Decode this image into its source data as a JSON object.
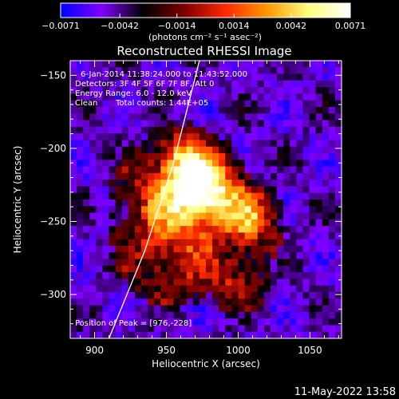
{
  "colors": {
    "background": "#000000",
    "colormap": [
      "#0000ff",
      "#7f00ff",
      "#000000",
      "#7f0000",
      "#ff2a00",
      "#ff9900",
      "#ffff80",
      "#ffffff"
    ],
    "limb": "#ffffff"
  },
  "chart_data": {
    "type": "heatmap",
    "title": "Reconstructed RHESSI Image",
    "xlabel": "Heliocentric X (arcsec)",
    "ylabel": "Heliocentric Y (arcsec)",
    "xlim": [
      883,
      1072
    ],
    "ylim": [
      -330,
      -140
    ],
    "x_ticks": [
      900,
      950,
      1000,
      1050
    ],
    "y_ticks": [
      -150,
      -200,
      -250,
      -300
    ],
    "colorbar": {
      "range": [
        -0.0071,
        0.0071
      ],
      "ticks": [
        "-0.0071",
        "-0.0042",
        "-0.0014",
        "0.0014",
        "0.0042",
        "0.0071"
      ],
      "units": "(photons cm⁻² s⁻¹ asec⁻²)"
    },
    "annotations": {
      "time": "6-Jan-2014 11:38:24.000 to 11:43:52.000",
      "detectors": "Detectors: 3F 4F 5F 6F 7F 8F, Att 0",
      "energy": "Energy Range: 6.0 - 12.0 keV",
      "clean": "Clean",
      "counts": "Total counts: 1.44E+05",
      "peak": "Position of Peak = [976,-228]"
    },
    "peak": [
      976,
      -228
    ],
    "sources": [
      {
        "x": 976,
        "y": -228,
        "sigma": 16,
        "amp": 1.0
      },
      {
        "x": 1008,
        "y": -248,
        "sigma": 14,
        "amp": 0.55
      },
      {
        "x": 960,
        "y": -206,
        "sigma": 12,
        "amp": 0.45
      },
      {
        "x": 955,
        "y": -270,
        "sigma": 22,
        "amp": 0.4
      },
      {
        "x": 1000,
        "y": -290,
        "sigma": 14,
        "amp": 0.3
      },
      {
        "x": 945,
        "y": -232,
        "sigma": 20,
        "amp": 0.35
      }
    ],
    "limb": [
      [
        910,
        -330
      ],
      [
        935,
        -270
      ],
      [
        955,
        -210
      ],
      [
        973,
        -140
      ]
    ]
  },
  "footer": {
    "date": "11-May-2022 13:58"
  }
}
